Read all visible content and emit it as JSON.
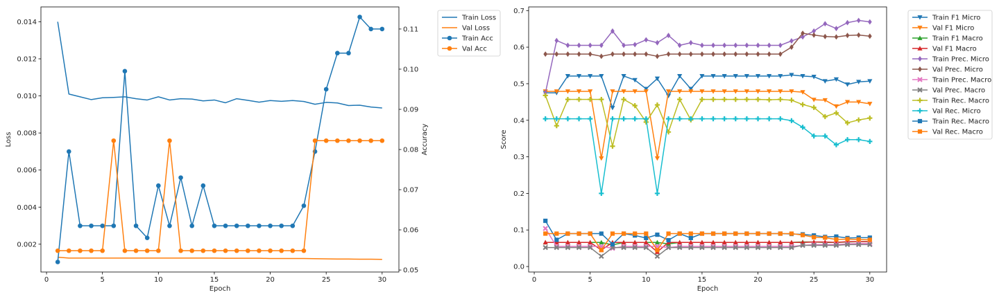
{
  "chart_data": [
    {
      "type": "line",
      "xlabel": "Epoch",
      "ylabel_left": "Loss",
      "ylabel_right": "Accuracy",
      "xlim": [
        -0.5,
        31.5
      ],
      "ylim_left": [
        0.0005,
        0.0148
      ],
      "ylim_right": [
        0.0495,
        0.1155
      ],
      "x_ticks": [
        0,
        5,
        10,
        15,
        20,
        25,
        30
      ],
      "y_ticks_left": [
        0.002,
        0.004,
        0.006,
        0.008,
        0.01,
        0.012,
        0.014
      ],
      "y_tick_labels_left": [
        "0.002",
        "0.004",
        "0.006",
        "0.008",
        "0.010",
        "0.012",
        "0.014"
      ],
      "y_ticks_right": [
        0.05,
        0.06,
        0.07,
        0.08,
        0.09,
        0.1,
        0.11
      ],
      "y_tick_labels_right": [
        "0.05",
        "0.06",
        "0.07",
        "0.08",
        "0.09",
        "0.10",
        "0.11"
      ],
      "x": [
        1,
        2,
        3,
        4,
        5,
        6,
        7,
        8,
        9,
        10,
        11,
        12,
        13,
        14,
        15,
        16,
        17,
        18,
        19,
        20,
        21,
        22,
        23,
        24,
        25,
        26,
        27,
        28,
        29,
        30
      ],
      "legend_position": "outside-top-right",
      "series": [
        {
          "name": "Train Loss",
          "axis": "left",
          "color": "#1f77b4",
          "marker": "none",
          "values": [
            0.014,
            0.0101,
            0.00995,
            0.0098,
            0.0099,
            0.00992,
            0.00995,
            0.00985,
            0.00978,
            0.00995,
            0.00978,
            0.00985,
            0.00983,
            0.00973,
            0.00978,
            0.00963,
            0.00985,
            0.00976,
            0.00966,
            0.00975,
            0.00971,
            0.00975,
            0.0097,
            0.00955,
            0.00965,
            0.00962,
            0.00948,
            0.0095,
            0.0094,
            0.00935
          ]
        },
        {
          "name": "Val Loss",
          "axis": "left",
          "color": "#ff7f0e",
          "marker": "none",
          "values": [
            0.0013,
            0.00125,
            0.00125,
            0.00125,
            0.00125,
            0.00125,
            0.00125,
            0.00125,
            0.00125,
            0.00125,
            0.00125,
            0.00125,
            0.00125,
            0.00125,
            0.00125,
            0.00124,
            0.00124,
            0.00124,
            0.00124,
            0.00123,
            0.00123,
            0.00123,
            0.00123,
            0.00122,
            0.00121,
            0.0012,
            0.0012,
            0.00119,
            0.00119,
            0.00118
          ]
        },
        {
          "name": "Train Acc",
          "axis": "right",
          "color": "#1f77b4",
          "marker": "circle",
          "values": [
            0.052,
            0.0795,
            0.061,
            0.061,
            0.061,
            0.061,
            0.0995,
            0.061,
            0.058,
            0.071,
            0.061,
            0.073,
            0.061,
            0.071,
            0.061,
            0.061,
            0.061,
            0.061,
            0.061,
            0.061,
            0.061,
            0.061,
            0.066,
            0.0795,
            0.095,
            0.104,
            0.104,
            0.113,
            0.11,
            0.11
          ]
        },
        {
          "name": "Val Acc",
          "axis": "right",
          "color": "#ff7f0e",
          "marker": "circle",
          "values": [
            0.0548,
            0.0548,
            0.0548,
            0.0548,
            0.0548,
            0.0822,
            0.0548,
            0.0548,
            0.0548,
            0.0548,
            0.0822,
            0.0548,
            0.0548,
            0.0548,
            0.0548,
            0.0548,
            0.0548,
            0.0548,
            0.0548,
            0.0548,
            0.0548,
            0.0548,
            0.0548,
            0.0822,
            0.0822,
            0.0822,
            0.0822,
            0.0822,
            0.0822,
            0.0822
          ]
        }
      ]
    },
    {
      "type": "line",
      "xlabel": "Epoch",
      "ylabel": "Score",
      "xlim": [
        -0.5,
        31.5
      ],
      "ylim": [
        -0.015,
        0.71
      ],
      "x_ticks": [
        0,
        5,
        10,
        15,
        20,
        25,
        30
      ],
      "y_ticks": [
        0.0,
        0.1,
        0.2,
        0.3,
        0.4,
        0.5,
        0.6,
        0.7
      ],
      "y_tick_labels": [
        "0.0",
        "0.1",
        "0.2",
        "0.3",
        "0.4",
        "0.5",
        "0.6",
        "0.7"
      ],
      "x": [
        1,
        2,
        3,
        4,
        5,
        6,
        7,
        8,
        9,
        10,
        11,
        12,
        13,
        14,
        15,
        16,
        17,
        18,
        19,
        20,
        21,
        22,
        23,
        24,
        25,
        26,
        27,
        28,
        29,
        30
      ],
      "legend_position": "outside-top-right",
      "series": [
        {
          "name": "Train F1 Micro",
          "color": "#1f77b4",
          "marker": "triangle-down",
          "values": [
            0.475,
            0.475,
            0.521,
            0.521,
            0.521,
            0.521,
            0.434,
            0.521,
            0.51,
            0.486,
            0.514,
            0.467,
            0.521,
            0.486,
            0.521,
            0.521,
            0.521,
            0.521,
            0.521,
            0.521,
            0.521,
            0.521,
            0.524,
            0.521,
            0.519,
            0.507,
            0.512,
            0.498,
            0.505,
            0.507
          ]
        },
        {
          "name": "Val F1 Micro",
          "color": "#ff7f0e",
          "marker": "triangle-down",
          "values": [
            0.479,
            0.479,
            0.479,
            0.479,
            0.479,
            0.296,
            0.479,
            0.479,
            0.479,
            0.479,
            0.296,
            0.479,
            0.479,
            0.479,
            0.479,
            0.479,
            0.479,
            0.479,
            0.479,
            0.479,
            0.479,
            0.479,
            0.479,
            0.477,
            0.456,
            0.455,
            0.438,
            0.45,
            0.45,
            0.445
          ]
        },
        {
          "name": "Train F1 Macro",
          "color": "#2ca02c",
          "marker": "triangle-up",
          "values": [
            0.066,
            0.066,
            0.066,
            0.066,
            0.066,
            0.066,
            0.059,
            0.066,
            0.066,
            0.066,
            0.066,
            0.062,
            0.066,
            0.066,
            0.066,
            0.066,
            0.066,
            0.066,
            0.066,
            0.066,
            0.066,
            0.066,
            0.066,
            0.067,
            0.067,
            0.066,
            0.066,
            0.067,
            0.068,
            0.068
          ]
        },
        {
          "name": "Val F1 Macro",
          "color": "#d62728",
          "marker": "triangle-up",
          "values": [
            0.066,
            0.066,
            0.066,
            0.066,
            0.066,
            0.045,
            0.066,
            0.066,
            0.066,
            0.066,
            0.04,
            0.066,
            0.066,
            0.066,
            0.066,
            0.066,
            0.066,
            0.066,
            0.066,
            0.066,
            0.066,
            0.066,
            0.066,
            0.066,
            0.067,
            0.067,
            0.066,
            0.068,
            0.068,
            0.068
          ]
        },
        {
          "name": "Train Prec. Micro",
          "color": "#9467bd",
          "marker": "diamond",
          "values": [
            0.475,
            0.618,
            0.605,
            0.605,
            0.605,
            0.605,
            0.644,
            0.605,
            0.607,
            0.62,
            0.612,
            0.632,
            0.605,
            0.612,
            0.605,
            0.605,
            0.605,
            0.605,
            0.605,
            0.605,
            0.605,
            0.605,
            0.617,
            0.628,
            0.644,
            0.664,
            0.651,
            0.667,
            0.673,
            0.669
          ]
        },
        {
          "name": "Val Prec. Micro",
          "color": "#8c564b",
          "marker": "diamond",
          "values": [
            0.581,
            0.581,
            0.581,
            0.581,
            0.581,
            0.575,
            0.581,
            0.581,
            0.581,
            0.581,
            0.575,
            0.581,
            0.581,
            0.581,
            0.581,
            0.581,
            0.581,
            0.581,
            0.581,
            0.581,
            0.581,
            0.581,
            0.6,
            0.638,
            0.633,
            0.629,
            0.628,
            0.632,
            0.633,
            0.63
          ]
        },
        {
          "name": "Train Prec. Macro",
          "color": "#e377c2",
          "marker": "x",
          "values": [
            0.104,
            0.055,
            0.055,
            0.055,
            0.055,
            0.055,
            0.05,
            0.055,
            0.055,
            0.055,
            0.055,
            0.052,
            0.055,
            0.055,
            0.055,
            0.055,
            0.055,
            0.055,
            0.055,
            0.055,
            0.055,
            0.055,
            0.055,
            0.058,
            0.06,
            0.06,
            0.06,
            0.062,
            0.063,
            0.063
          ]
        },
        {
          "name": "Val Prec. Macro",
          "color": "#7f7f7f",
          "marker": "x",
          "values": [
            0.052,
            0.052,
            0.052,
            0.052,
            0.052,
            0.028,
            0.052,
            0.052,
            0.052,
            0.052,
            0.028,
            0.052,
            0.052,
            0.052,
            0.052,
            0.052,
            0.052,
            0.052,
            0.052,
            0.052,
            0.052,
            0.052,
            0.052,
            0.058,
            0.058,
            0.058,
            0.058,
            0.06,
            0.06,
            0.06
          ]
        },
        {
          "name": "Train Rec. Macro",
          "color": "#bcbd22",
          "marker": "plus",
          "values": [
            0.468,
            0.385,
            0.457,
            0.457,
            0.457,
            0.457,
            0.329,
            0.457,
            0.44,
            0.395,
            0.442,
            0.368,
            0.457,
            0.401,
            0.457,
            0.457,
            0.457,
            0.457,
            0.457,
            0.457,
            0.456,
            0.457,
            0.455,
            0.443,
            0.435,
            0.41,
            0.42,
            0.393,
            0.401,
            0.406
          ]
        },
        {
          "name": "Val Rec. Micro",
          "color": "#17becf",
          "marker": "plus",
          "values": [
            0.404,
            0.404,
            0.404,
            0.404,
            0.404,
            0.2,
            0.404,
            0.404,
            0.404,
            0.404,
            0.2,
            0.404,
            0.404,
            0.404,
            0.404,
            0.404,
            0.404,
            0.404,
            0.404,
            0.404,
            0.404,
            0.404,
            0.399,
            0.381,
            0.357,
            0.357,
            0.333,
            0.347,
            0.347,
            0.342
          ]
        },
        {
          "name": "Train Rec. Macro",
          "color": "#1f77b4",
          "marker": "square",
          "values": [
            0.125,
            0.073,
            0.09,
            0.09,
            0.09,
            0.09,
            0.061,
            0.09,
            0.085,
            0.078,
            0.087,
            0.072,
            0.09,
            0.078,
            0.09,
            0.09,
            0.09,
            0.09,
            0.09,
            0.09,
            0.09,
            0.09,
            0.089,
            0.088,
            0.085,
            0.081,
            0.082,
            0.078,
            0.079,
            0.079
          ]
        },
        {
          "name": "Val Rec. Macro",
          "color": "#ff7f0e",
          "marker": "square",
          "values": [
            0.09,
            0.09,
            0.09,
            0.09,
            0.09,
            0.045,
            0.09,
            0.09,
            0.09,
            0.09,
            0.045,
            0.09,
            0.09,
            0.09,
            0.09,
            0.09,
            0.09,
            0.09,
            0.09,
            0.09,
            0.09,
            0.09,
            0.09,
            0.086,
            0.08,
            0.079,
            0.074,
            0.075,
            0.074,
            0.073
          ]
        }
      ]
    }
  ]
}
